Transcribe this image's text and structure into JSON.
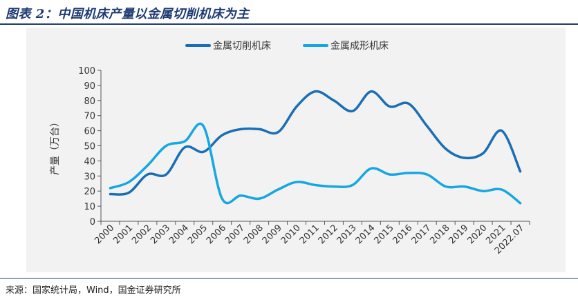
{
  "header": {
    "title": "图表 2：中国机床产量以金属切削机床为主"
  },
  "footer": {
    "source": "来源：国家统计局，Wind，国金证券研究所"
  },
  "chart_data": {
    "type": "line",
    "title": "",
    "xlabel": "",
    "ylabel": "产量（万台）",
    "ylim": [
      0,
      100
    ],
    "yticks": [
      0,
      10,
      20,
      30,
      40,
      50,
      60,
      70,
      80,
      90,
      100
    ],
    "categories": [
      "2000",
      "2001",
      "2002",
      "2003",
      "2004",
      "2005",
      "2006",
      "2007",
      "2008",
      "2009",
      "2010",
      "2011",
      "2012",
      "2013",
      "2014",
      "2015",
      "2016",
      "2017",
      "2018",
      "2019",
      "2020",
      "2021",
      "2022.07"
    ],
    "legend_position": "top-center",
    "series": [
      {
        "name": "金属切削机床",
        "color": "#1a6eb5",
        "values": [
          18,
          19,
          31,
          31,
          49,
          46,
          57,
          61,
          61,
          59,
          76,
          86,
          80,
          73,
          86,
          76,
          78,
          63,
          48,
          42,
          45,
          60,
          33
        ]
      },
      {
        "name": "金属成形机床",
        "color": "#16a7e2",
        "values": [
          22,
          26,
          37,
          50,
          53,
          63,
          15,
          17,
          15,
          21,
          26,
          24,
          23,
          24,
          35,
          31,
          32,
          31,
          23,
          23,
          20,
          21,
          12
        ]
      }
    ]
  }
}
